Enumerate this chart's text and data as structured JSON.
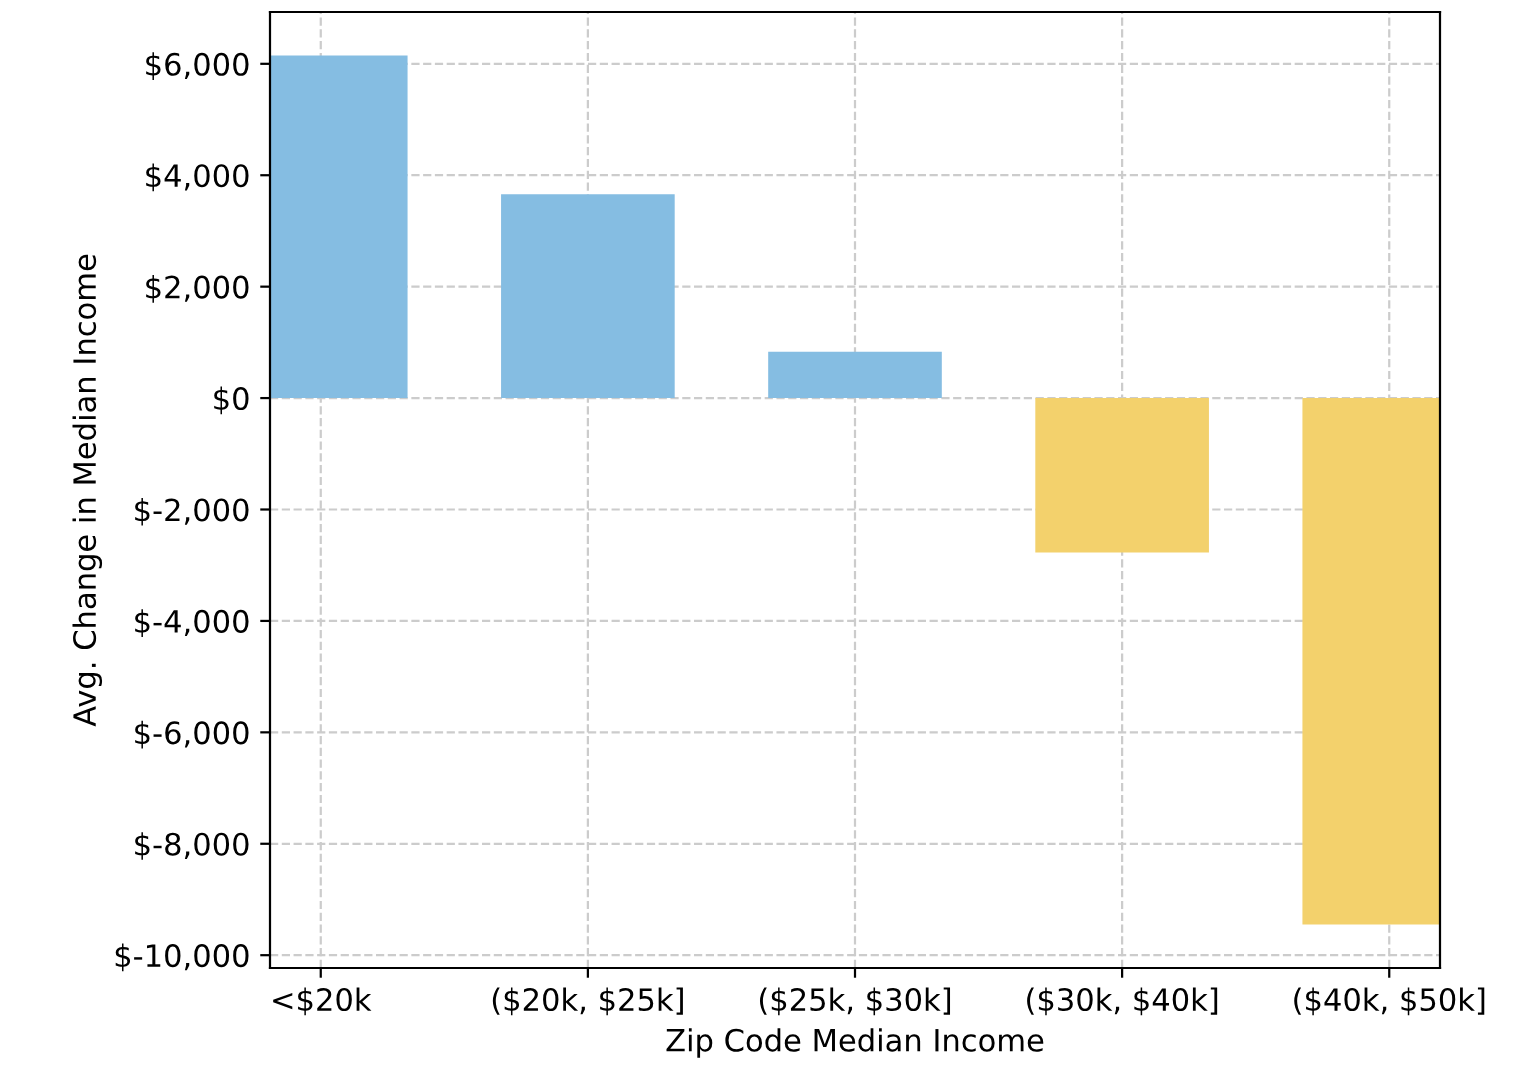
{
  "chart_data": {
    "type": "bar",
    "xlabel": "Zip Code Median Income",
    "ylabel": "Avg. Change in Median Income",
    "categories": [
      "<$20k",
      "($20k, $25k]",
      "($25k, $30k]",
      "($30k, $40k]",
      "($40k, $50k]"
    ],
    "values": [
      6150,
      3660,
      830,
      -2770,
      -9450
    ],
    "colors": [
      "#85bde2",
      "#85bde2",
      "#85bde2",
      "#f3d16c",
      "#f3d16c"
    ],
    "ylim": [
      -10230,
      6930
    ],
    "yticks": [
      {
        "value": -10000,
        "label": "$-10,000"
      },
      {
        "value": -8000,
        "label": "$-8,000"
      },
      {
        "value": -6000,
        "label": "$-6,000"
      },
      {
        "value": -4000,
        "label": "$-4,000"
      },
      {
        "value": -2000,
        "label": "$-2,000"
      },
      {
        "value": 0,
        "label": "$0"
      },
      {
        "value": 2000,
        "label": "$2,000"
      },
      {
        "value": 4000,
        "label": "$4,000"
      },
      {
        "value": 6000,
        "label": "$6,000"
      }
    ],
    "grid": true,
    "line_style": "dashed"
  }
}
